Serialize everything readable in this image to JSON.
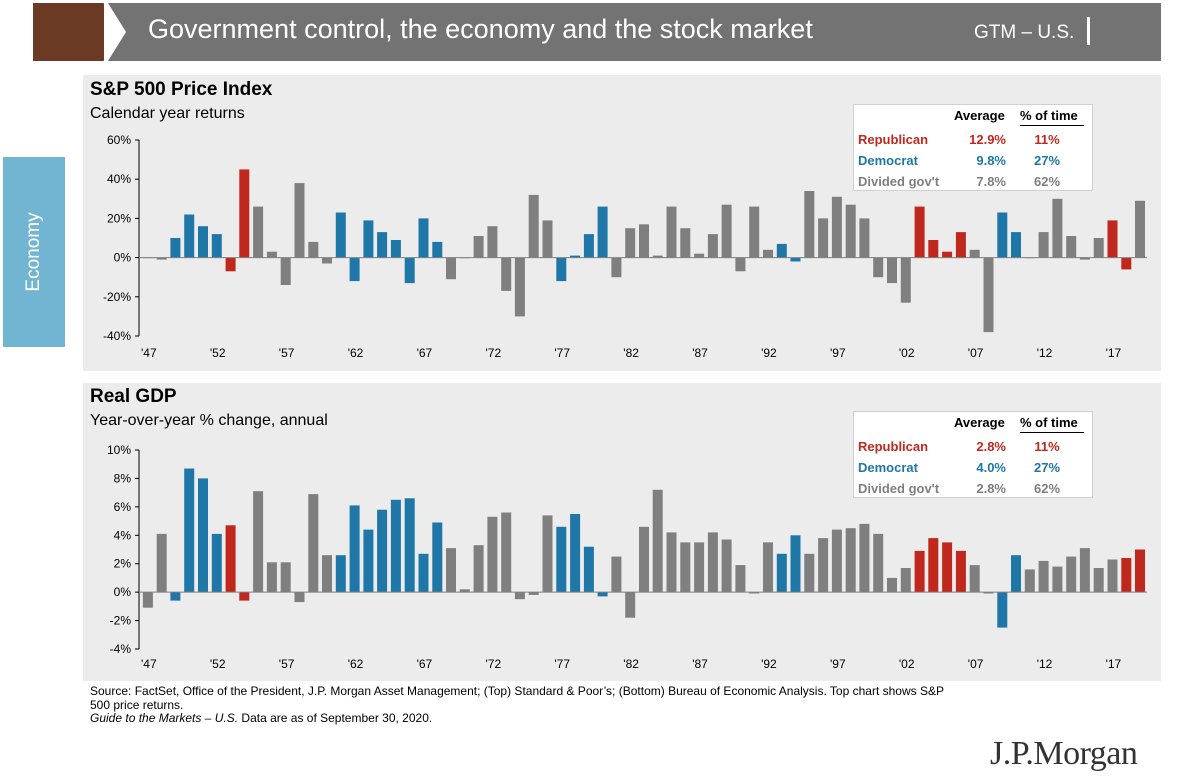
{
  "header": {
    "title": "Government control, the economy and the stock market",
    "tag": "GTM – U.S."
  },
  "side_tab": {
    "label": "Economy"
  },
  "colors": {
    "republican": "#c0281e",
    "democrat": "#1f77a8",
    "divided": "#7f7f7f",
    "header": "#737373",
    "arrow": "#6a3a24",
    "tab": "#72b5d2"
  },
  "footer": {
    "source": "Source: FactSet, Office of the President, J.P. Morgan Asset Management; (Top) Standard & Poor’s; (Bottom) Bureau of Economic Analysis. Top chart shows S&P 500 price returns.",
    "guide_title": "Guide to the Markets – U.S.",
    "guide_rest": " Data are as of September 30, 2020."
  },
  "logo": "J.P.Morgan",
  "chart_data": [
    {
      "type": "bar",
      "title": "S&P 500 Price Index",
      "subtitle": "Calendar year returns",
      "ylim": [
        -40,
        60
      ],
      "yticks": [
        "60%",
        "40%",
        "20%",
        "0%",
        "-20%",
        "-40%"
      ],
      "x_tick_labels": [
        "'47",
        "'52",
        "'57",
        "'62",
        "'67",
        "'72",
        "'77",
        "'82",
        "'87",
        "'92",
        "'97",
        "'02",
        "'07",
        "'12",
        "'17"
      ],
      "first_year": 1947,
      "series": [
        {
          "name": "Republican",
          "color": "#c0281e",
          "points": [
            [
              1953,
              -7
            ],
            [
              1954,
              45
            ],
            [
              2003,
              26
            ],
            [
              2004,
              9
            ],
            [
              2005,
              3
            ],
            [
              2006,
              13
            ],
            [
              2017,
              19
            ],
            [
              2018,
              -6
            ]
          ]
        },
        {
          "name": "Democrat",
          "color": "#1f77a8",
          "points": [
            [
              1949,
              10
            ],
            [
              1950,
              22
            ],
            [
              1951,
              16
            ],
            [
              1952,
              12
            ],
            [
              1961,
              23
            ],
            [
              1962,
              -12
            ],
            [
              1963,
              19
            ],
            [
              1964,
              13
            ],
            [
              1965,
              9
            ],
            [
              1966,
              -13
            ],
            [
              1967,
              20
            ],
            [
              1968,
              8
            ],
            [
              1977,
              -12
            ],
            [
              1978,
              1
            ],
            [
              1979,
              12
            ],
            [
              1980,
              26
            ],
            [
              1993,
              7
            ],
            [
              1994,
              -2
            ],
            [
              2009,
              23
            ],
            [
              2010,
              13
            ]
          ]
        },
        {
          "name": "Divided gov't",
          "color": "#7f7f7f",
          "points": [
            [
              1947,
              0
            ],
            [
              1948,
              -1
            ],
            [
              1955,
              26
            ],
            [
              1956,
              3
            ],
            [
              1957,
              -14
            ],
            [
              1958,
              38
            ],
            [
              1959,
              8
            ],
            [
              1960,
              -3
            ],
            [
              1969,
              -11
            ],
            [
              1970,
              0
            ],
            [
              1971,
              11
            ],
            [
              1972,
              16
            ],
            [
              1973,
              -17
            ],
            [
              1974,
              -30
            ],
            [
              1975,
              32
            ],
            [
              1976,
              19
            ],
            [
              1981,
              -10
            ],
            [
              1982,
              15
            ],
            [
              1983,
              17
            ],
            [
              1984,
              1
            ],
            [
              1985,
              26
            ],
            [
              1986,
              15
            ],
            [
              1987,
              2
            ],
            [
              1988,
              12
            ],
            [
              1989,
              27
            ],
            [
              1990,
              -7
            ],
            [
              1991,
              26
            ],
            [
              1992,
              4
            ],
            [
              1995,
              34
            ],
            [
              1996,
              20
            ],
            [
              1997,
              31
            ],
            [
              1998,
              27
            ],
            [
              1999,
              20
            ],
            [
              2000,
              -10
            ],
            [
              2001,
              -13
            ],
            [
              2002,
              -23
            ],
            [
              2007,
              4
            ],
            [
              2008,
              -38
            ],
            [
              2011,
              0
            ],
            [
              2012,
              13
            ],
            [
              2013,
              30
            ],
            [
              2014,
              11
            ],
            [
              2015,
              -1
            ],
            [
              2016,
              10
            ],
            [
              2019,
              29
            ]
          ]
        }
      ],
      "legend": {
        "headers": [
          "Average",
          "% of time"
        ],
        "rows": [
          {
            "label": "Republican",
            "average": "12.9%",
            "pct": "11%",
            "color": "#c0281e"
          },
          {
            "label": "Democrat",
            "average": "9.8%",
            "pct": "27%",
            "color": "#1f77a8"
          },
          {
            "label": "Divided gov't",
            "average": "7.8%",
            "pct": "62%",
            "color": "#7f7f7f"
          }
        ]
      }
    },
    {
      "type": "bar",
      "title": "Real GDP",
      "subtitle": "Year-over-year % change, annual",
      "ylim": [
        -4,
        10
      ],
      "yticks": [
        "10%",
        "8%",
        "6%",
        "4%",
        "2%",
        "0%",
        "-2%",
        "-4%"
      ],
      "x_tick_labels": [
        "'47",
        "'52",
        "'57",
        "'62",
        "'67",
        "'72",
        "'77",
        "'82",
        "'87",
        "'92",
        "'97",
        "'02",
        "'07",
        "'12",
        "'17"
      ],
      "first_year": 1947,
      "series": [
        {
          "name": "Republican",
          "color": "#c0281e",
          "points": [
            [
              1953,
              4.7
            ],
            [
              1954,
              -0.6
            ],
            [
              2003,
              2.9
            ],
            [
              2004,
              3.8
            ],
            [
              2005,
              3.5
            ],
            [
              2006,
              2.9
            ],
            [
              2018,
              2.4
            ],
            [
              2019,
              3.0
            ]
          ]
        },
        {
          "name": "Democrat",
          "color": "#1f77a8",
          "points": [
            [
              1949,
              -0.6
            ],
            [
              1950,
              8.7
            ],
            [
              1951,
              8.0
            ],
            [
              1952,
              4.1
            ],
            [
              1961,
              2.6
            ],
            [
              1962,
              6.1
            ],
            [
              1963,
              4.4
            ],
            [
              1964,
              5.8
            ],
            [
              1965,
              6.5
            ],
            [
              1966,
              6.6
            ],
            [
              1967,
              2.7
            ],
            [
              1968,
              4.9
            ],
            [
              1977,
              4.6
            ],
            [
              1978,
              5.5
            ],
            [
              1979,
              3.2
            ],
            [
              1980,
              -0.3
            ],
            [
              1993,
              2.7
            ],
            [
              1994,
              4.0
            ],
            [
              2009,
              -2.5
            ],
            [
              2010,
              2.6
            ]
          ]
        },
        {
          "name": "Divided gov't",
          "color": "#7f7f7f",
          "points": [
            [
              1947,
              -1.1
            ],
            [
              1948,
              4.1
            ],
            [
              1955,
              7.1
            ],
            [
              1956,
              2.1
            ],
            [
              1957,
              2.1
            ],
            [
              1958,
              -0.7
            ],
            [
              1959,
              6.9
            ],
            [
              1960,
              2.6
            ],
            [
              1969,
              3.1
            ],
            [
              1970,
              0.2
            ],
            [
              1971,
              3.3
            ],
            [
              1972,
              5.3
            ],
            [
              1973,
              5.6
            ],
            [
              1974,
              -0.5
            ],
            [
              1975,
              -0.2
            ],
            [
              1976,
              5.4
            ],
            [
              1981,
              2.5
            ],
            [
              1982,
              -1.8
            ],
            [
              1983,
              4.6
            ],
            [
              1984,
              7.2
            ],
            [
              1985,
              4.2
            ],
            [
              1986,
              3.5
            ],
            [
              1987,
              3.5
            ],
            [
              1988,
              4.2
            ],
            [
              1989,
              3.7
            ],
            [
              1990,
              1.9
            ],
            [
              1991,
              -0.1
            ],
            [
              1992,
              3.5
            ],
            [
              1995,
              2.7
            ],
            [
              1996,
              3.8
            ],
            [
              1997,
              4.4
            ],
            [
              1998,
              4.5
            ],
            [
              1999,
              4.8
            ],
            [
              2000,
              4.1
            ],
            [
              2001,
              1.0
            ],
            [
              2002,
              1.7
            ],
            [
              2007,
              1.9
            ],
            [
              2008,
              -0.1
            ],
            [
              2011,
              1.6
            ],
            [
              2012,
              2.2
            ],
            [
              2013,
              1.8
            ],
            [
              2014,
              2.5
            ],
            [
              2015,
              3.1
            ],
            [
              2016,
              1.7
            ],
            [
              2017,
              2.3
            ]
          ]
        }
      ],
      "legend": {
        "headers": [
          "Average",
          "% of time"
        ],
        "rows": [
          {
            "label": "Republican",
            "average": "2.8%",
            "pct": "11%",
            "color": "#c0281e"
          },
          {
            "label": "Democrat",
            "average": "4.0%",
            "pct": "27%",
            "color": "#1f77a8"
          },
          {
            "label": "Divided gov't",
            "average": "2.8%",
            "pct": "62%",
            "color": "#7f7f7f"
          }
        ]
      }
    }
  ]
}
